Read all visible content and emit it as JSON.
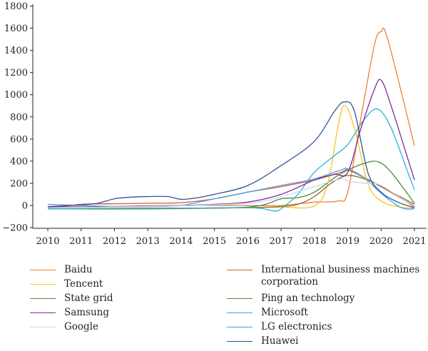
{
  "chart_data": {
    "type": "line",
    "title": "",
    "xlabel": "",
    "ylabel": "",
    "xlim": [
      2010,
      2021
    ],
    "ylim": [
      -200,
      1800
    ],
    "x_ticks": [
      "2010",
      "2011",
      "2012",
      "2013",
      "2014",
      "2015",
      "2016",
      "2017",
      "2018",
      "2019",
      "2020",
      "2021"
    ],
    "y_ticks": [
      "1800",
      "1600",
      "1400",
      "1200",
      "1000",
      "800",
      "600",
      "400",
      "200",
      "0",
      "−200"
    ],
    "legend_position": "bottom",
    "series": [
      {
        "name": "Baidu",
        "color": "#ef7f2f",
        "points": [
          [
            2010,
            -20
          ],
          [
            2012,
            -10
          ],
          [
            2014,
            0
          ],
          [
            2016,
            0
          ],
          [
            2017,
            0
          ],
          [
            2018,
            30
          ],
          [
            2018.7,
            40
          ],
          [
            2019,
            120
          ],
          [
            2019.4,
            800
          ],
          [
            2019.8,
            1450
          ],
          [
            2020,
            1570
          ],
          [
            2020.2,
            1500
          ],
          [
            2021,
            540
          ]
        ]
      },
      {
        "name": "International business machines\ncorporation",
        "color": "#d9592a",
        "points": [
          [
            2010,
            -30
          ],
          [
            2011,
            10
          ],
          [
            2012,
            15
          ],
          [
            2013,
            20
          ],
          [
            2014,
            25
          ],
          [
            2015,
            60
          ],
          [
            2016,
            120
          ],
          [
            2017,
            170
          ],
          [
            2018,
            230
          ],
          [
            2018.8,
            300
          ],
          [
            2019,
            320
          ],
          [
            2019.5,
            250
          ],
          [
            2020,
            170
          ],
          [
            2021,
            -10
          ]
        ]
      },
      {
        "name": "Tencent",
        "color": "#f5c321",
        "points": [
          [
            2010,
            -30
          ],
          [
            2012,
            -35
          ],
          [
            2014,
            -30
          ],
          [
            2016,
            -20
          ],
          [
            2017,
            -15
          ],
          [
            2018,
            -5
          ],
          [
            2018.4,
            200
          ],
          [
            2018.7,
            700
          ],
          [
            2018.9,
            905
          ],
          [
            2019.2,
            700
          ],
          [
            2019.6,
            200
          ],
          [
            2020,
            40
          ],
          [
            2020.5,
            -10
          ],
          [
            2021,
            -25
          ]
        ]
      },
      {
        "name": "Ping an technology",
        "color": "#8a6a2a",
        "points": [
          [
            2010,
            -30
          ],
          [
            2013,
            -30
          ],
          [
            2016,
            -20
          ],
          [
            2017,
            -10
          ],
          [
            2017.5,
            10
          ],
          [
            2018,
            80
          ],
          [
            2018.5,
            200
          ],
          [
            2019,
            270
          ],
          [
            2019.6,
            230
          ],
          [
            2020,
            170
          ],
          [
            2021,
            10
          ]
        ]
      },
      {
        "name": "State grid",
        "color": "#4d8a3a",
        "points": [
          [
            2010,
            -30
          ],
          [
            2013,
            -25
          ],
          [
            2016,
            -15
          ],
          [
            2017,
            60
          ],
          [
            2017.5,
            70
          ],
          [
            2018,
            120
          ],
          [
            2018.6,
            250
          ],
          [
            2019,
            320
          ],
          [
            2019.5,
            380
          ],
          [
            2019.9,
            395
          ],
          [
            2020.3,
            300
          ],
          [
            2021,
            20
          ]
        ]
      },
      {
        "name": "Microsoft",
        "color": "#29b4d8",
        "points": [
          [
            2010,
            -30
          ],
          [
            2013,
            -30
          ],
          [
            2016,
            -20
          ],
          [
            2016.8,
            -50
          ],
          [
            2017,
            -30
          ],
          [
            2017.5,
            100
          ],
          [
            2018,
            300
          ],
          [
            2018.6,
            450
          ],
          [
            2019,
            550
          ],
          [
            2019.5,
            780
          ],
          [
            2019.9,
            870
          ],
          [
            2020.3,
            700
          ],
          [
            2020.8,
            300
          ],
          [
            2021,
            140
          ]
        ]
      },
      {
        "name": "Samsung",
        "color": "#7a2a9a",
        "points": [
          [
            2010,
            -15
          ],
          [
            2012,
            -10
          ],
          [
            2014,
            0
          ],
          [
            2015,
            10
          ],
          [
            2016,
            30
          ],
          [
            2017,
            100
          ],
          [
            2018,
            230
          ],
          [
            2018.6,
            280
          ],
          [
            2019,
            300
          ],
          [
            2019.4,
            700
          ],
          [
            2019.8,
            1050
          ],
          [
            2020,
            1130
          ],
          [
            2020.3,
            900
          ],
          [
            2021,
            230
          ]
        ]
      },
      {
        "name": "LG electronics",
        "color": "#4aa0df",
        "points": [
          [
            2010,
            10
          ],
          [
            2011,
            0
          ],
          [
            2012,
            -10
          ],
          [
            2013,
            -10
          ],
          [
            2014,
            0
          ],
          [
            2015,
            60
          ],
          [
            2016,
            120
          ],
          [
            2017,
            180
          ],
          [
            2018,
            240
          ],
          [
            2018.8,
            320
          ],
          [
            2019,
            330
          ],
          [
            2019.5,
            250
          ],
          [
            2020,
            110
          ],
          [
            2020.6,
            -20
          ],
          [
            2021,
            -30
          ]
        ]
      },
      {
        "name": "Google",
        "color": "#cdd4f0",
        "points": [
          [
            2010,
            -20
          ],
          [
            2013,
            -10
          ],
          [
            2016,
            20
          ],
          [
            2017,
            80
          ],
          [
            2018,
            170
          ],
          [
            2018.8,
            240
          ],
          [
            2019,
            220
          ],
          [
            2019.5,
            200
          ],
          [
            2020,
            180
          ],
          [
            2021,
            -20
          ]
        ]
      },
      {
        "name": "Huawei",
        "color": "#2f5597",
        "points": [
          [
            2010,
            -10
          ],
          [
            2011,
            5
          ],
          [
            2011.5,
            20
          ],
          [
            2012,
            60
          ],
          [
            2012.5,
            75
          ],
          [
            2013,
            80
          ],
          [
            2013.6,
            80
          ],
          [
            2014,
            55
          ],
          [
            2014.5,
            70
          ],
          [
            2015,
            100
          ],
          [
            2016,
            180
          ],
          [
            2017,
            360
          ],
          [
            2018,
            580
          ],
          [
            2018.6,
            850
          ],
          [
            2018.9,
            935
          ],
          [
            2019.2,
            850
          ],
          [
            2019.6,
            300
          ],
          [
            2020,
            120
          ],
          [
            2020.5,
            30
          ],
          [
            2021,
            -20
          ]
        ]
      }
    ]
  },
  "legend": [
    {
      "label": "Baidu",
      "color": "#ef7f2f",
      "col": 0,
      "row": 0
    },
    {
      "label": "International business machines\ncorporation",
      "color": "#d9592a",
      "col": 1,
      "row": 0
    },
    {
      "label": "Tencent",
      "color": "#f5c321",
      "col": 0,
      "row": 1
    },
    {
      "label": "State grid",
      "color": "#4d8a3a",
      "col": 0,
      "row": 2
    },
    {
      "label": "Ping an technology",
      "color": "#8a6a2a",
      "col": 1,
      "row": 2
    },
    {
      "label": "Samsung",
      "color": "#7a2a9a",
      "col": 0,
      "row": 3
    },
    {
      "label": "Microsoft",
      "color": "#29b4d8",
      "col": 1,
      "row": 3
    },
    {
      "label": "Google",
      "color": "#cdd4f0",
      "col": 0,
      "row": 4
    },
    {
      "label": "LG electronics",
      "color": "#4aa0df",
      "col": 1,
      "row": 4
    },
    {
      "label": "Huawei",
      "color": "#2f5597",
      "col": 1,
      "row": 5
    }
  ]
}
